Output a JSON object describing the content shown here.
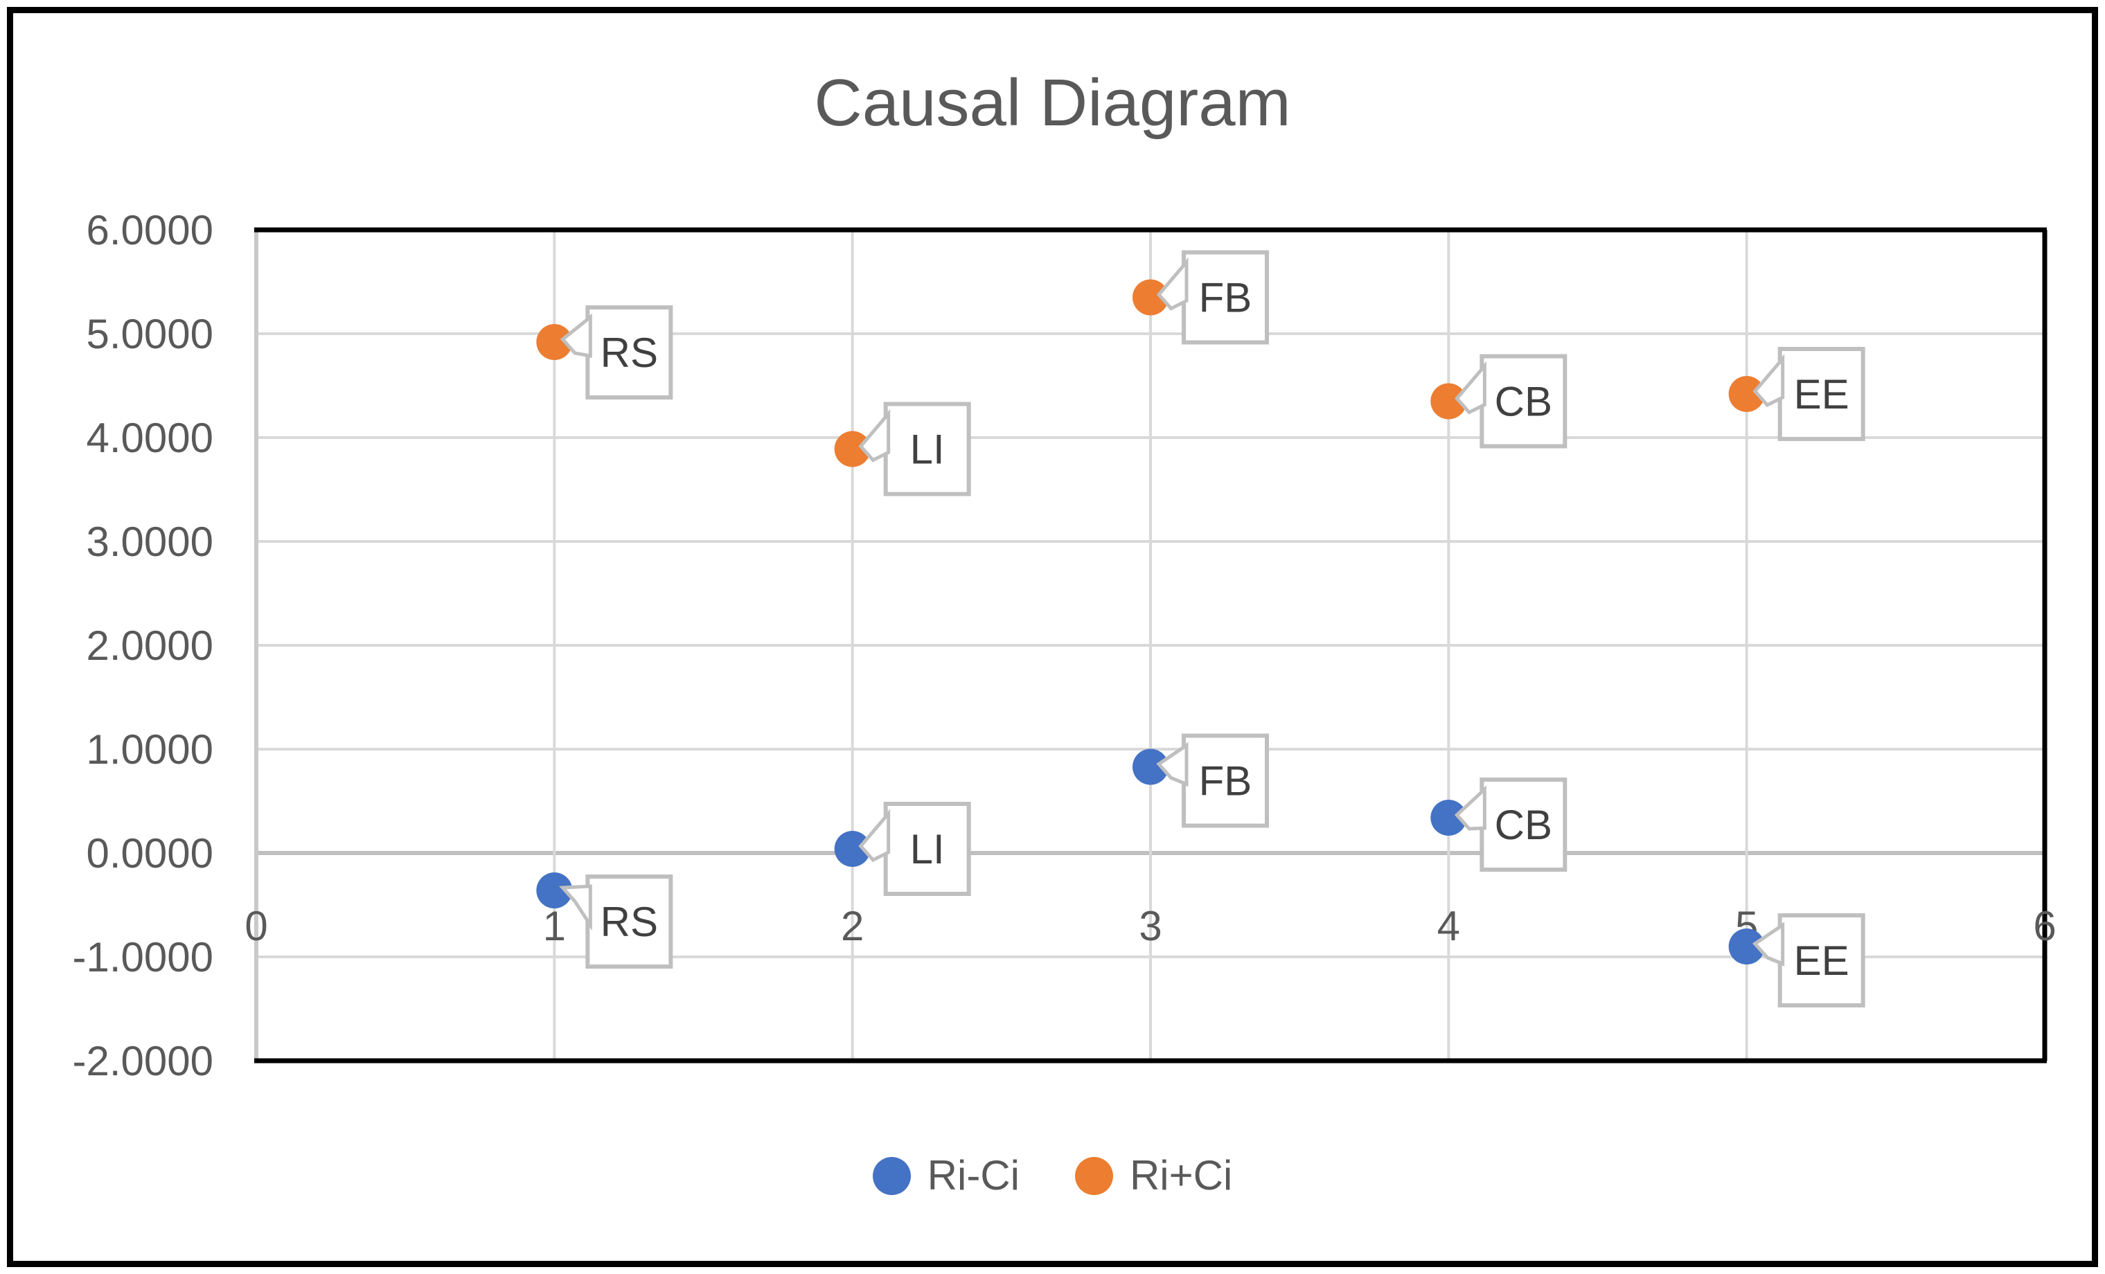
{
  "chart_data": {
    "type": "scatter",
    "title": "Causal Diagram",
    "xlabel": "",
    "ylabel": "",
    "xlim": [
      0,
      6
    ],
    "ylim": [
      -2,
      6
    ],
    "x_ticks": [
      "0",
      "1",
      "2",
      "3",
      "4",
      "5",
      "6"
    ],
    "y_ticks": [
      "6.0000",
      "5.0000",
      "4.0000",
      "3.0000",
      "2.0000",
      "1.0000",
      "0.0000",
      "-1.0000",
      "-2.0000"
    ],
    "grid": true,
    "legend_position": "bottom-center",
    "series": [
      {
        "name": "Ri-Ci",
        "color": "#4472C4",
        "points": [
          {
            "label": "RS",
            "x": 1,
            "y": -0.36
          },
          {
            "label": "LI",
            "x": 2,
            "y": 0.04
          },
          {
            "label": "FB",
            "x": 3,
            "y": 0.83
          },
          {
            "label": "CB",
            "x": 4,
            "y": 0.34
          },
          {
            "label": "EE",
            "x": 5,
            "y": -0.9
          }
        ]
      },
      {
        "name": "Ri+Ci",
        "color": "#ED7D31",
        "points": [
          {
            "label": "RS",
            "x": 1,
            "y": 4.92
          },
          {
            "label": "LI",
            "x": 2,
            "y": 3.89
          },
          {
            "label": "FB",
            "x": 3,
            "y": 5.35
          },
          {
            "label": "CB",
            "x": 4,
            "y": 4.35
          },
          {
            "label": "EE",
            "x": 5,
            "y": 4.42
          }
        ]
      }
    ],
    "colors": {
      "grid": "#D9D9D9",
      "zero_axis": "#BFBFBF",
      "left_axis": "#C9C9C9",
      "plot_border": "#000000",
      "tick_text": "#595959",
      "callout_border": "#BFBFBF",
      "callout_text": "#404040",
      "background": "#FFFFFF"
    }
  }
}
